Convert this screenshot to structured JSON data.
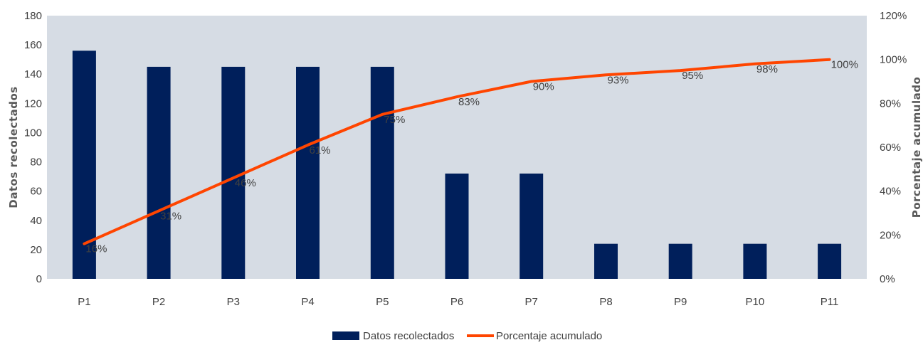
{
  "chart_data": {
    "type": "bar",
    "categories": [
      "P1",
      "P2",
      "P3",
      "P4",
      "P5",
      "P6",
      "P7",
      "P8",
      "P9",
      "P10",
      "P11"
    ],
    "series": [
      {
        "name": "Datos recolectados",
        "type": "bar",
        "axis": "left",
        "color": "#001f5b",
        "values": [
          156,
          145,
          145,
          145,
          145,
          72,
          72,
          24,
          24,
          24,
          24
        ]
      },
      {
        "name": "Porcentaje acumulado",
        "type": "line",
        "axis": "right",
        "color": "#ff4500",
        "values": [
          16,
          31,
          46,
          61,
          75,
          83,
          90,
          93,
          95,
          98,
          100
        ],
        "labels": [
          "16%",
          "31%",
          "46%",
          "61%",
          "75%",
          "83%",
          "90%",
          "93%",
          "95%",
          "98%",
          "100%"
        ]
      }
    ],
    "ylabel": "Datos recolectados",
    "y2label": "Porcentaje acumulado",
    "ylim": [
      0,
      180
    ],
    "yticks": [
      0,
      20,
      40,
      60,
      80,
      100,
      120,
      140,
      160,
      180
    ],
    "y2lim": [
      0,
      120
    ],
    "y2ticks": [
      "0%",
      "20%",
      "40%",
      "60%",
      "80%",
      "100%",
      "120%"
    ],
    "plot_background": "#d6dce4",
    "grid": false,
    "legend_position": "bottom"
  }
}
